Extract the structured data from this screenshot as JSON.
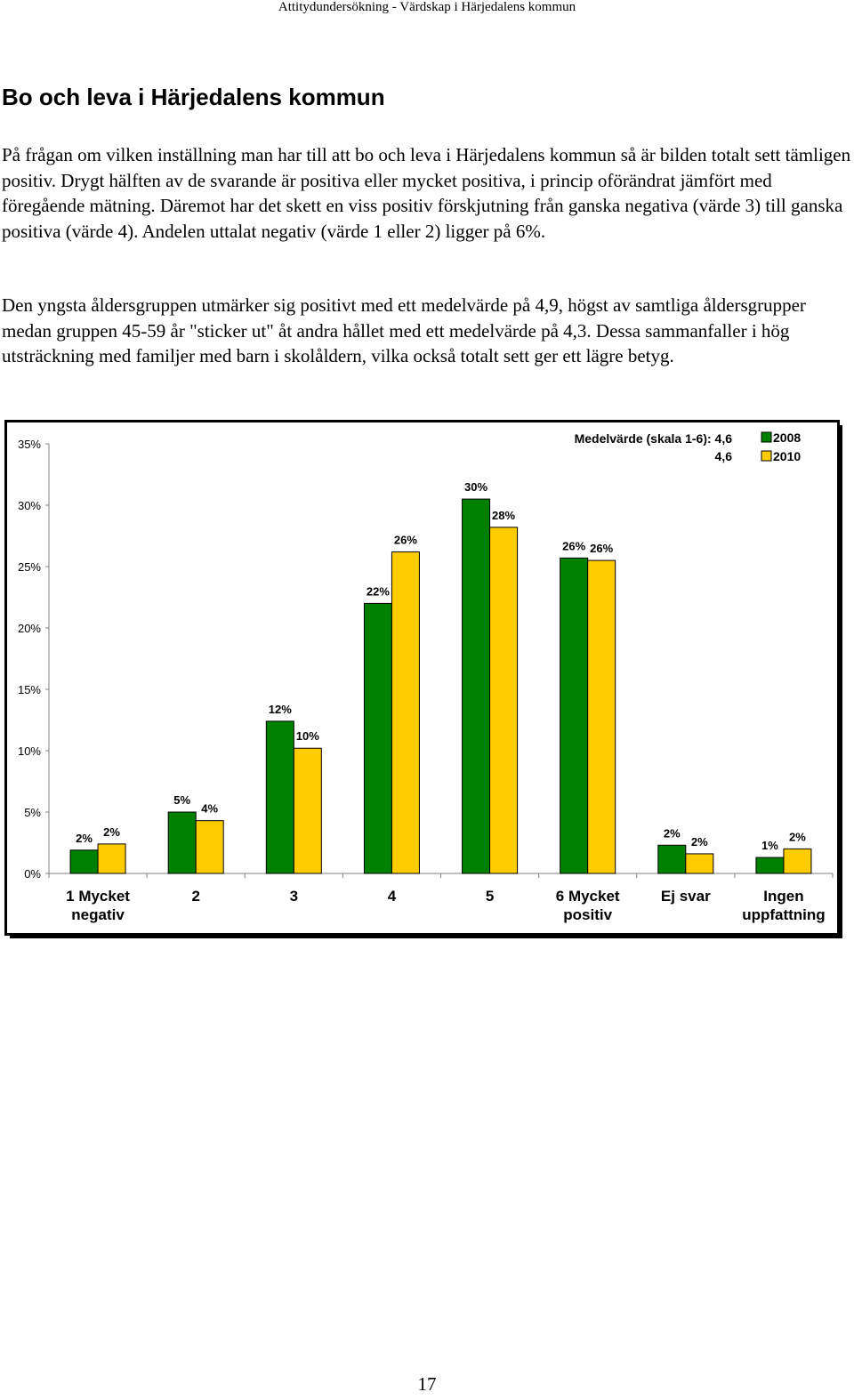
{
  "header": "Attitydundersökning - Värdskap i Härjedalens kommun",
  "title": "Bo och leva i Härjedalens kommun",
  "paragraphs": [
    "På frågan om vilken inställning man har till att bo och leva i Härjedalens kommun så är bilden totalt sett tämligen positiv. Drygt hälften av de svarande är positiva eller mycket positiva, i princip oförändrat jämfört med föregående mätning. Däremot har det skett en viss positiv förskjutning från ganska negativa (värde 3) till ganska positiva (värde 4). Andelen uttalat negativ (värde 1 eller 2) ligger på 6%.",
    "Den yngsta åldersgruppen utmärker sig positivt med ett medelvärde på 4,9, högst av samtliga åldersgrupper medan gruppen 45-59 år \"sticker ut\" åt andra hållet med ett medelvärde på 4,3. Dessa sammanfaller i hög utsträckning med familjer med barn i skolåldern, vilka också totalt sett ger ett lägre betyg."
  ],
  "page_number": "17",
  "chart_data": {
    "type": "bar",
    "title": "",
    "categories": [
      [
        "1 Mycket",
        "negativ"
      ],
      [
        "2"
      ],
      [
        "3"
      ],
      [
        "4"
      ],
      [
        "5"
      ],
      [
        "6 Mycket",
        "positiv"
      ],
      [
        "Ej svar"
      ],
      [
        "Ingen",
        "uppfattning"
      ]
    ],
    "series": [
      {
        "name": "2008",
        "color": "#008000",
        "values": [
          1.9,
          5.0,
          12.4,
          22.0,
          30.5,
          25.7,
          2.3,
          1.3
        ],
        "labels": [
          "2%",
          "5%",
          "12%",
          "22%",
          "30%",
          "26%",
          "2%",
          "1%"
        ]
      },
      {
        "name": "2010",
        "color": "#FFCC00",
        "values": [
          2.4,
          4.3,
          10.2,
          26.2,
          28.2,
          25.5,
          1.6,
          2.0
        ],
        "labels": [
          "2%",
          "4%",
          "10%",
          "26%",
          "28%",
          "26%",
          "2%",
          "2%"
        ]
      }
    ],
    "y_ticks": [
      "0%",
      "5%",
      "10%",
      "15%",
      "20%",
      "25%",
      "30%",
      "35%"
    ],
    "ylim": [
      0,
      35
    ],
    "xlabel": "",
    "ylabel": "",
    "gridlines": false,
    "mean_label": "Medelvärde (skala 1-6):",
    "mean_values": [
      "4,6",
      "4,6"
    ],
    "legend_position": "top-right"
  }
}
